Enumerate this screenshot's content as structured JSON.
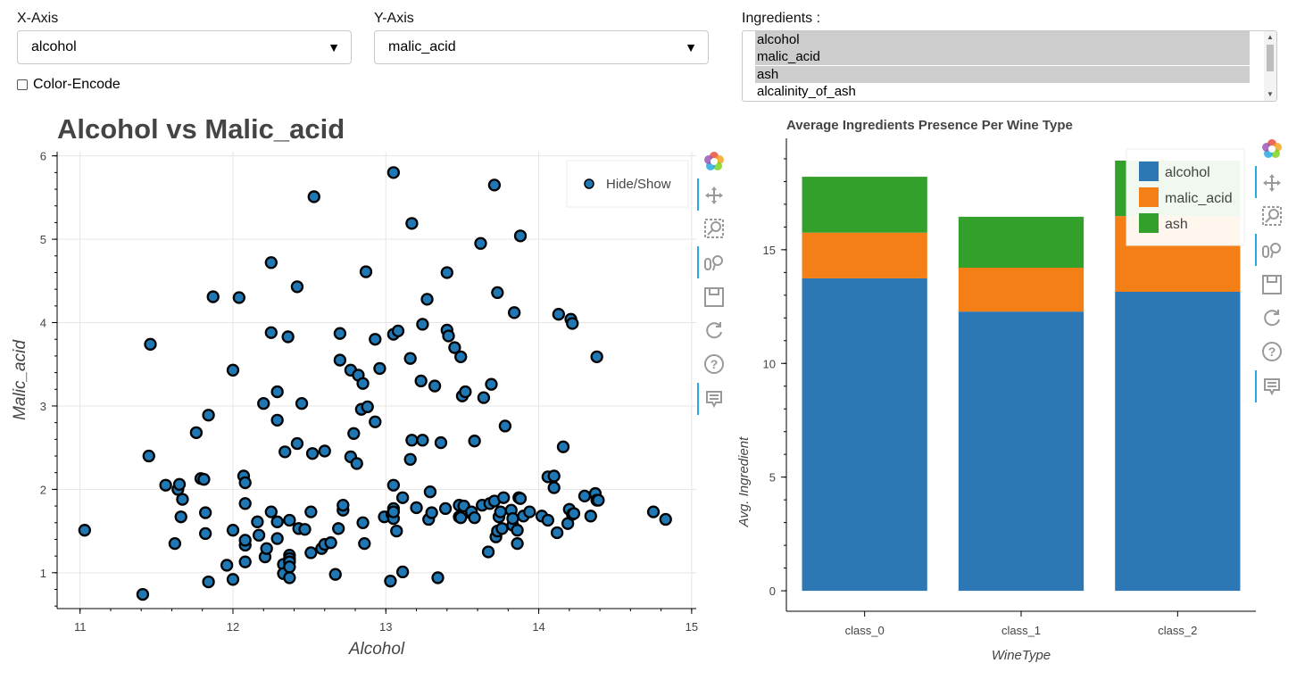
{
  "controls": {
    "x_axis": {
      "label": "X-Axis",
      "value": "alcohol"
    },
    "y_axis": {
      "label": "Y-Axis",
      "value": "malic_acid"
    },
    "color_encode": {
      "label": "Color-Encode",
      "checked": false
    },
    "ingredients": {
      "label": "Ingredients :",
      "options": [
        {
          "text": "alcohol",
          "selected": true
        },
        {
          "text": "malic_acid",
          "selected": true
        },
        {
          "text": "ash",
          "selected": true
        },
        {
          "text": "alcalinity_of_ash",
          "selected": false
        }
      ]
    }
  },
  "chart_data": [
    {
      "type": "scatter",
      "title": "Alcohol vs Malic_acid",
      "xlabel": "Alcohol",
      "ylabel": "Malic_acid",
      "xlim": [
        10.85,
        15.03
      ],
      "ylim": [
        0.57,
        6.05
      ],
      "xticks": [
        11,
        12,
        13,
        14,
        15
      ],
      "yticks": [
        1,
        2,
        3,
        4,
        5,
        6
      ],
      "legend": {
        "label": "Hide/Show",
        "position": "top-right"
      },
      "marker_color": "#1f77b4",
      "points": [
        [
          11.03,
          1.51
        ],
        [
          11.41,
          0.74
        ],
        [
          11.46,
          3.74
        ],
        [
          11.45,
          2.4
        ],
        [
          11.56,
          2.05
        ],
        [
          11.62,
          1.35
        ],
        [
          11.64,
          2.0
        ],
        [
          11.65,
          2.06
        ],
        [
          11.66,
          1.67
        ],
        [
          11.67,
          1.88
        ],
        [
          11.76,
          2.68
        ],
        [
          11.79,
          2.13
        ],
        [
          11.81,
          2.12
        ],
        [
          11.82,
          1.72
        ],
        [
          11.82,
          1.47
        ],
        [
          11.84,
          0.89
        ],
        [
          11.84,
          2.89
        ],
        [
          11.87,
          4.31
        ],
        [
          11.96,
          1.09
        ],
        [
          12.0,
          3.43
        ],
        [
          12.0,
          0.92
        ],
        [
          12.0,
          1.51
        ],
        [
          12.04,
          4.3
        ],
        [
          12.07,
          2.16
        ],
        [
          12.08,
          1.13
        ],
        [
          12.08,
          1.33
        ],
        [
          12.08,
          1.83
        ],
        [
          12.08,
          2.08
        ],
        [
          12.08,
          1.39
        ],
        [
          12.16,
          1.61
        ],
        [
          12.17,
          1.45
        ],
        [
          12.2,
          3.03
        ],
        [
          12.21,
          1.19
        ],
        [
          12.22,
          1.29
        ],
        [
          12.25,
          1.73
        ],
        [
          12.25,
          3.88
        ],
        [
          12.25,
          4.72
        ],
        [
          12.29,
          1.61
        ],
        [
          12.29,
          2.83
        ],
        [
          12.29,
          3.17
        ],
        [
          12.29,
          1.41
        ],
        [
          12.33,
          1.1
        ],
        [
          12.33,
          0.99
        ],
        [
          12.34,
          2.45
        ],
        [
          12.36,
          3.83
        ],
        [
          12.37,
          1.63
        ],
        [
          12.37,
          1.21
        ],
        [
          12.37,
          1.17
        ],
        [
          12.37,
          1.13
        ],
        [
          12.37,
          1.07
        ],
        [
          12.37,
          0.94
        ],
        [
          12.42,
          2.55
        ],
        [
          12.42,
          4.43
        ],
        [
          12.43,
          1.53
        ],
        [
          12.45,
          3.03
        ],
        [
          12.47,
          1.52
        ],
        [
          12.51,
          1.73
        ],
        [
          12.51,
          1.24
        ],
        [
          12.52,
          2.43
        ],
        [
          12.53,
          5.51
        ],
        [
          12.58,
          1.29
        ],
        [
          12.6,
          1.34
        ],
        [
          12.6,
          2.46
        ],
        [
          12.64,
          1.36
        ],
        [
          12.67,
          0.98
        ],
        [
          12.69,
          1.53
        ],
        [
          12.7,
          3.55
        ],
        [
          12.7,
          3.87
        ],
        [
          12.72,
          1.75
        ],
        [
          12.72,
          1.81
        ],
        [
          12.77,
          3.43
        ],
        [
          12.77,
          2.39
        ],
        [
          12.79,
          2.67
        ],
        [
          12.81,
          2.31
        ],
        [
          12.82,
          3.37
        ],
        [
          12.84,
          2.96
        ],
        [
          12.85,
          1.6
        ],
        [
          12.85,
          3.27
        ],
        [
          12.86,
          1.35
        ],
        [
          12.87,
          4.61
        ],
        [
          12.88,
          2.99
        ],
        [
          12.93,
          3.8
        ],
        [
          12.93,
          2.81
        ],
        [
          12.96,
          3.45
        ],
        [
          12.99,
          1.67
        ],
        [
          13.03,
          0.9
        ],
        [
          13.04,
          1.7
        ],
        [
          13.05,
          1.77
        ],
        [
          13.05,
          1.65
        ],
        [
          13.05,
          1.73
        ],
        [
          13.05,
          5.8
        ],
        [
          13.05,
          2.05
        ],
        [
          13.05,
          3.86
        ],
        [
          13.07,
          1.5
        ],
        [
          13.08,
          3.9
        ],
        [
          13.11,
          1.01
        ],
        [
          13.11,
          1.9
        ],
        [
          13.16,
          3.57
        ],
        [
          13.16,
          2.36
        ],
        [
          13.17,
          5.19
        ],
        [
          13.17,
          2.59
        ],
        [
          13.2,
          1.78
        ],
        [
          13.23,
          3.3
        ],
        [
          13.24,
          2.59
        ],
        [
          13.24,
          3.98
        ],
        [
          13.27,
          4.28
        ],
        [
          13.28,
          1.64
        ],
        [
          13.29,
          1.97
        ],
        [
          13.3,
          1.72
        ],
        [
          13.32,
          3.24
        ],
        [
          13.34,
          0.94
        ],
        [
          13.36,
          2.56
        ],
        [
          13.39,
          1.77
        ],
        [
          13.4,
          4.6
        ],
        [
          13.4,
          3.91
        ],
        [
          13.41,
          3.84
        ],
        [
          13.45,
          3.7
        ],
        [
          13.48,
          1.81
        ],
        [
          13.48,
          1.67
        ],
        [
          13.49,
          1.66
        ],
        [
          13.49,
          3.59
        ],
        [
          13.5,
          3.12
        ],
        [
          13.51,
          1.8
        ],
        [
          13.52,
          3.17
        ],
        [
          13.56,
          1.71
        ],
        [
          13.56,
          1.73
        ],
        [
          13.58,
          1.66
        ],
        [
          13.58,
          2.58
        ],
        [
          13.62,
          4.95
        ],
        [
          13.63,
          1.81
        ],
        [
          13.64,
          3.1
        ],
        [
          13.67,
          1.25
        ],
        [
          13.68,
          1.83
        ],
        [
          13.69,
          3.26
        ],
        [
          13.71,
          1.86
        ],
        [
          13.71,
          5.65
        ],
        [
          13.72,
          1.43
        ],
        [
          13.73,
          1.5
        ],
        [
          13.73,
          4.36
        ],
        [
          13.74,
          1.67
        ],
        [
          13.75,
          1.73
        ],
        [
          13.76,
          1.53
        ],
        [
          13.77,
          1.9
        ],
        [
          13.78,
          2.76
        ],
        [
          13.82,
          1.75
        ],
        [
          13.83,
          1.57
        ],
        [
          13.83,
          1.65
        ],
        [
          13.84,
          4.12
        ],
        [
          13.86,
          1.35
        ],
        [
          13.86,
          1.51
        ],
        [
          13.87,
          1.9
        ],
        [
          13.88,
          1.89
        ],
        [
          13.88,
          5.04
        ],
        [
          13.9,
          1.68
        ],
        [
          13.94,
          1.73
        ],
        [
          14.02,
          1.68
        ],
        [
          14.06,
          1.63
        ],
        [
          14.06,
          2.15
        ],
        [
          14.1,
          2.02
        ],
        [
          14.1,
          2.16
        ],
        [
          14.12,
          1.48
        ],
        [
          14.13,
          4.1
        ],
        [
          14.16,
          2.51
        ],
        [
          14.19,
          1.59
        ],
        [
          14.2,
          1.76
        ],
        [
          14.21,
          4.04
        ],
        [
          14.22,
          1.7
        ],
        [
          14.22,
          3.99
        ],
        [
          14.23,
          1.71
        ],
        [
          14.3,
          1.92
        ],
        [
          14.34,
          1.68
        ],
        [
          14.37,
          1.95
        ],
        [
          14.38,
          1.87
        ],
        [
          14.38,
          3.59
        ],
        [
          14.39,
          1.87
        ],
        [
          14.75,
          1.73
        ],
        [
          14.83,
          1.64
        ]
      ]
    },
    {
      "type": "bar",
      "stacked": true,
      "title": "Average Ingredients Presence Per Wine Type",
      "xlabel": "WineType",
      "ylabel": "Avg. Ingredient",
      "categories": [
        "class_0",
        "class_1",
        "class_2"
      ],
      "ylim": [
        -0.9,
        19.9
      ],
      "yticks": [
        0,
        5,
        10,
        15
      ],
      "legend_position": "top-right",
      "series": [
        {
          "name": "alcohol",
          "color": "#2c77b4",
          "values": [
            13.74,
            12.28,
            13.15
          ]
        },
        {
          "name": "malic_acid",
          "color": "#f57f17",
          "values": [
            2.01,
            1.93,
            3.33
          ]
        },
        {
          "name": "ash",
          "color": "#33a02c",
          "values": [
            2.46,
            2.24,
            2.44
          ]
        }
      ]
    }
  ]
}
